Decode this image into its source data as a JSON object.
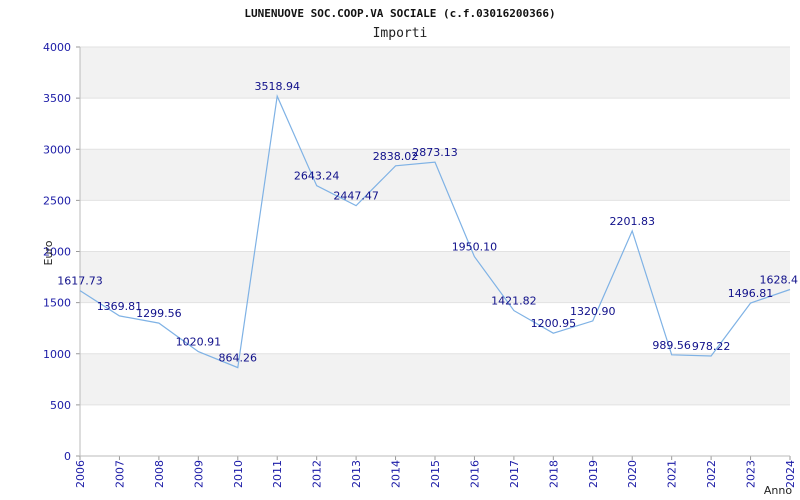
{
  "chart_data": {
    "type": "line",
    "title": "LUNENUOVE SOC.COOP.VA SOCIALE (c.f.03016200366)",
    "subtitle": "Importi",
    "xlabel": "Anno",
    "ylabel": "Euro",
    "ylim": [
      0,
      4000
    ],
    "yticks": [
      0,
      500,
      1000,
      1500,
      2000,
      2500,
      3000,
      3500,
      4000
    ],
    "grid": true,
    "legend": "none",
    "line_color": "#7fb2e5",
    "band_color": "#f2f2f2",
    "x": [
      "2006",
      "2007",
      "2008",
      "2009",
      "2010",
      "2011",
      "2012",
      "2013",
      "2014",
      "2015",
      "2016",
      "2017",
      "2018",
      "2019",
      "2020",
      "2021",
      "2022",
      "2023",
      "2024"
    ],
    "values": [
      1617.73,
      1369.81,
      1299.56,
      1020.91,
      864.26,
      3518.94,
      2643.24,
      2447.47,
      2838.02,
      2873.13,
      1950.1,
      1421.82,
      1200.95,
      1320.9,
      2201.83,
      989.56,
      978.22,
      1496.81,
      1628.4
    ],
    "labels": [
      "1617.73",
      "1369.81",
      "1299.56",
      "1020.91",
      "864.26",
      "3518.94",
      "2643.24",
      "2447.47",
      "2838.02",
      "2873.13",
      "1950.10",
      "1421.82",
      "1200.95",
      "1320.90",
      "2201.83",
      "989.56",
      "978.22",
      "1496.81",
      "1628.4"
    ]
  }
}
